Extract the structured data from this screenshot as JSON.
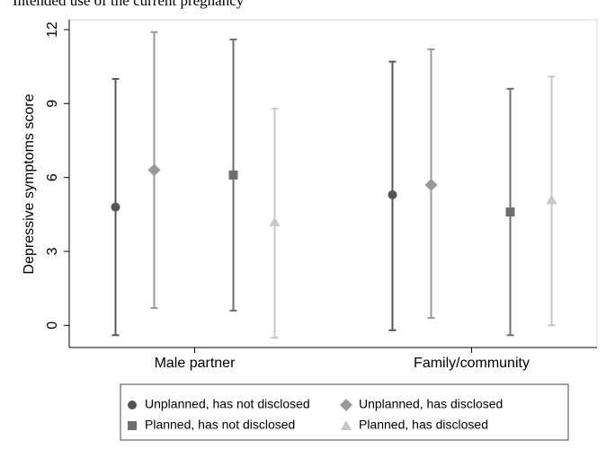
{
  "chart_data": {
    "type": "errorbar",
    "title": "Intended use of the current pregnancy",
    "y_label": "Depressive symptoms score",
    "categories": [
      "Male partner",
      "Family/community"
    ],
    "ylim": [
      -0.9,
      12.4
    ],
    "yticks": [
      0,
      3,
      6,
      9,
      12
    ],
    "grid": false,
    "series": [
      {
        "name": "Unplanned, has not disclosed",
        "color": "#555555",
        "marker": "circle",
        "values": [
          4.8,
          5.3
        ],
        "ci_low": [
          -0.4,
          -0.2
        ],
        "ci_high": [
          10.0,
          10.7
        ]
      },
      {
        "name": "Unplanned, has disclosed",
        "color": "#999999",
        "marker": "diamond",
        "values": [
          6.3,
          5.7
        ],
        "ci_low": [
          0.7,
          0.3
        ],
        "ci_high": [
          11.9,
          11.2
        ]
      },
      {
        "name": "Planned, has not disclosed",
        "color": "#6e6e6e",
        "marker": "square",
        "values": [
          6.1,
          4.6
        ],
        "ci_low": [
          0.6,
          -0.4
        ],
        "ci_high": [
          11.6,
          9.6
        ]
      },
      {
        "name": "Planned, has disclosed",
        "color": "#c8c8c8",
        "marker": "triangle",
        "values": [
          4.2,
          5.1
        ],
        "ci_low": [
          -0.5,
          0.0
        ],
        "ci_high": [
          8.8,
          10.1
        ]
      }
    ]
  }
}
